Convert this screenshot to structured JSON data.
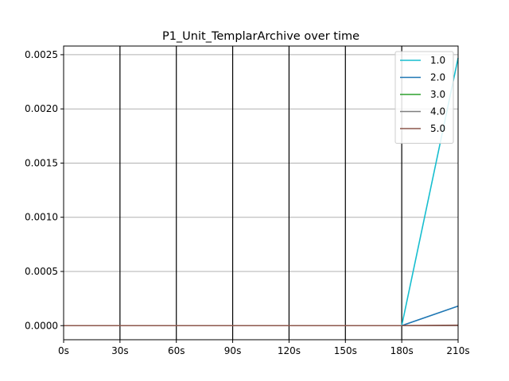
{
  "chart_data": {
    "type": "line",
    "title": "P1_Unit_TemplarArchive over time",
    "xlabel": "",
    "ylabel": "",
    "x": [
      0,
      30,
      60,
      90,
      120,
      150,
      180,
      210
    ],
    "x_tick_labels": [
      "0s",
      "30s",
      "60s",
      "90s",
      "120s",
      "150s",
      "180s",
      "210s"
    ],
    "xlim": [
      0,
      210
    ],
    "ylim": [
      -0.00013,
      0.00258
    ],
    "y_ticks": [
      0.0,
      0.0005,
      0.001,
      0.0015,
      0.002,
      0.0025
    ],
    "y_tick_labels": [
      "0.0000",
      "0.0005",
      "0.0010",
      "0.0015",
      "0.0020",
      "0.0025"
    ],
    "grid": {
      "x": true,
      "y": true,
      "x_color": "#000000",
      "y_color": "#b0b0b0"
    },
    "legend_position": "top-right",
    "series": [
      {
        "name": "1.0",
        "color": "#17becf",
        "values": [
          0,
          0,
          0,
          0,
          0,
          0,
          0,
          0.00247
        ]
      },
      {
        "name": "2.0",
        "color": "#1f77b4",
        "values": [
          0,
          0,
          0,
          0,
          0,
          0,
          0,
          0.00018
        ]
      },
      {
        "name": "3.0",
        "color": "#2ca02c",
        "values": [
          0,
          0,
          0,
          0,
          0,
          0,
          0,
          0
        ]
      },
      {
        "name": "4.0",
        "color": "#7f7f7f",
        "values": [
          0,
          0,
          0,
          0,
          0,
          0,
          0,
          0
        ]
      },
      {
        "name": "5.0",
        "color": "#8c564b",
        "values": [
          0,
          0,
          0,
          0,
          0,
          0,
          0,
          4e-06
        ]
      }
    ]
  }
}
